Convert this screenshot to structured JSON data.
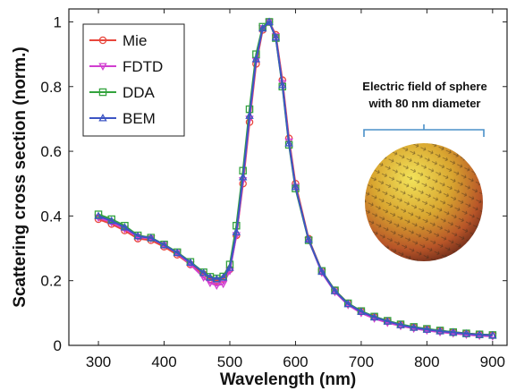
{
  "chart_data": {
    "type": "line",
    "xlabel": "Wavelength (nm)",
    "ylabel": "Scattering cross section (norm.)",
    "xlim": [
      255,
      922
    ],
    "ylim": [
      0,
      1.04
    ],
    "x_ticks": [
      "300",
      "400",
      "500",
      "600",
      "700",
      "800",
      "900"
    ],
    "y_ticks": [
      "0",
      "0.2",
      "0.4",
      "0.6",
      "0.8",
      "1"
    ],
    "grid": false,
    "legend_position": "top-left",
    "x": [
      300,
      320,
      340,
      360,
      380,
      400,
      420,
      440,
      460,
      470,
      480,
      490,
      500,
      510,
      520,
      530,
      540,
      550,
      560,
      570,
      580,
      590,
      600,
      620,
      640,
      660,
      680,
      700,
      720,
      740,
      760,
      780,
      800,
      820,
      840,
      860,
      880,
      900
    ],
    "series": [
      {
        "name": "Mie",
        "color": "#e8463c",
        "marker": "circle",
        "values": [
          0.39,
          0.375,
          0.355,
          0.33,
          0.325,
          0.305,
          0.28,
          0.25,
          0.22,
          0.205,
          0.2,
          0.205,
          0.235,
          0.34,
          0.5,
          0.69,
          0.87,
          0.975,
          1.0,
          0.96,
          0.82,
          0.64,
          0.5,
          0.33,
          0.23,
          0.17,
          0.13,
          0.105,
          0.088,
          0.075,
          0.064,
          0.056,
          0.05,
          0.045,
          0.041,
          0.037,
          0.034,
          0.032
        ]
      },
      {
        "name": "FDTD",
        "color": "#d13fd0",
        "marker": "triangle-down",
        "values": [
          0.395,
          0.38,
          0.36,
          0.335,
          0.33,
          0.31,
          0.285,
          0.25,
          0.21,
          0.193,
          0.185,
          0.19,
          0.23,
          0.34,
          0.51,
          0.7,
          0.88,
          0.98,
          1.0,
          0.955,
          0.81,
          0.63,
          0.49,
          0.325,
          0.225,
          0.165,
          0.125,
          0.1,
          0.083,
          0.07,
          0.06,
          0.052,
          0.046,
          0.041,
          0.037,
          0.033,
          0.03,
          0.028
        ]
      },
      {
        "name": "DDA",
        "color": "#33a33d",
        "marker": "square",
        "values": [
          0.405,
          0.39,
          0.37,
          0.34,
          0.333,
          0.312,
          0.288,
          0.258,
          0.226,
          0.212,
          0.207,
          0.213,
          0.25,
          0.37,
          0.54,
          0.73,
          0.9,
          0.985,
          1.0,
          0.95,
          0.8,
          0.62,
          0.485,
          0.325,
          0.23,
          0.17,
          0.13,
          0.106,
          0.089,
          0.076,
          0.065,
          0.057,
          0.051,
          0.046,
          0.041,
          0.037,
          0.034,
          0.032
        ]
      },
      {
        "name": "BEM",
        "color": "#3d55c4",
        "marker": "triangle-up",
        "values": [
          0.4,
          0.385,
          0.365,
          0.338,
          0.332,
          0.31,
          0.286,
          0.256,
          0.224,
          0.21,
          0.205,
          0.21,
          0.24,
          0.35,
          0.52,
          0.71,
          0.885,
          0.98,
          1.0,
          0.952,
          0.805,
          0.625,
          0.49,
          0.327,
          0.228,
          0.168,
          0.128,
          0.104,
          0.087,
          0.074,
          0.063,
          0.055,
          0.049,
          0.044,
          0.04,
          0.036,
          0.033,
          0.031
        ]
      }
    ],
    "annotation": {
      "line1": "Electric field of sphere",
      "line2": "with 80 nm diameter"
    }
  }
}
